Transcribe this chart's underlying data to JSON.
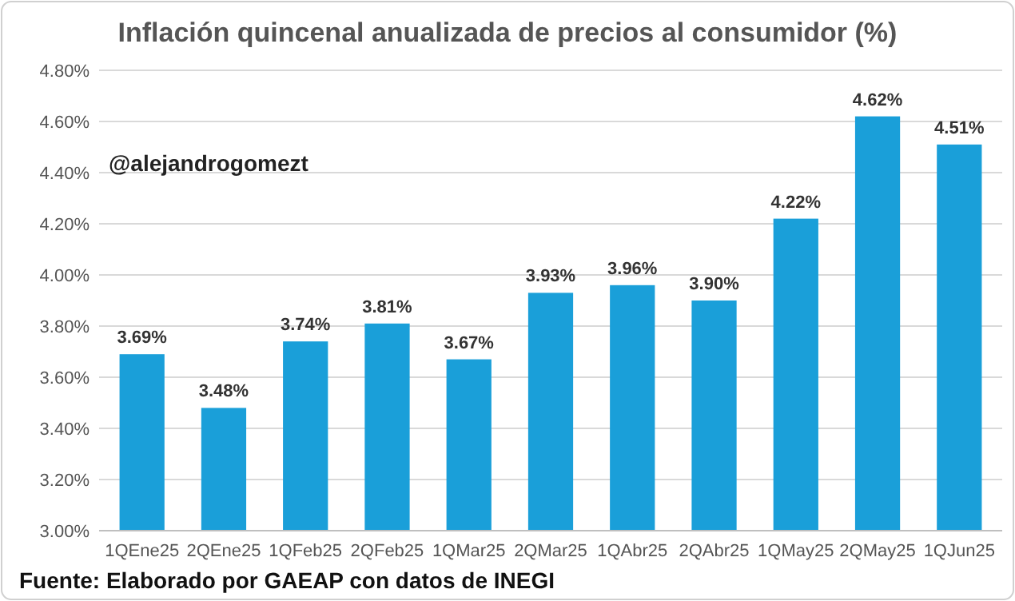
{
  "chart_data": {
    "type": "bar",
    "title": "Inflación quincenal anualizada de precios al consumidor (%)",
    "categories": [
      "1QEne25",
      "2QEne25",
      "1QFeb25",
      "2QFeb25",
      "1QMar25",
      "2QMar25",
      "1QAbr25",
      "2QAbr25",
      "1QMay25",
      "2QMay25",
      "1QJun25"
    ],
    "values": [
      3.69,
      3.48,
      3.74,
      3.81,
      3.67,
      3.93,
      3.96,
      3.9,
      4.22,
      4.62,
      4.51
    ],
    "value_labels": [
      "3.69%",
      "3.48%",
      "3.74%",
      "3.81%",
      "3.67%",
      "3.93%",
      "3.96%",
      "3.90%",
      "4.22%",
      "4.62%",
      "4.51%"
    ],
    "color": "#1a9fd9",
    "ylim": [
      3.0,
      4.8
    ],
    "yticks": [
      {
        "value": 3.0,
        "label": "3.00%"
      },
      {
        "value": 3.2,
        "label": "3.20%"
      },
      {
        "value": 3.4,
        "label": "3.40%"
      },
      {
        "value": 3.6,
        "label": "3.60%"
      },
      {
        "value": 3.8,
        "label": "3.80%"
      },
      {
        "value": 4.0,
        "label": "4.00%"
      },
      {
        "value": 4.2,
        "label": "4.20%"
      },
      {
        "value": 4.4,
        "label": "4.40%"
      },
      {
        "value": 4.6,
        "label": "4.60%"
      },
      {
        "value": 4.8,
        "label": "4.80%"
      }
    ],
    "grid": "y",
    "annotations": [
      "@alejandrogomezt",
      "Fuente: Elaborado por GAEAP con datos de INEGI"
    ]
  }
}
